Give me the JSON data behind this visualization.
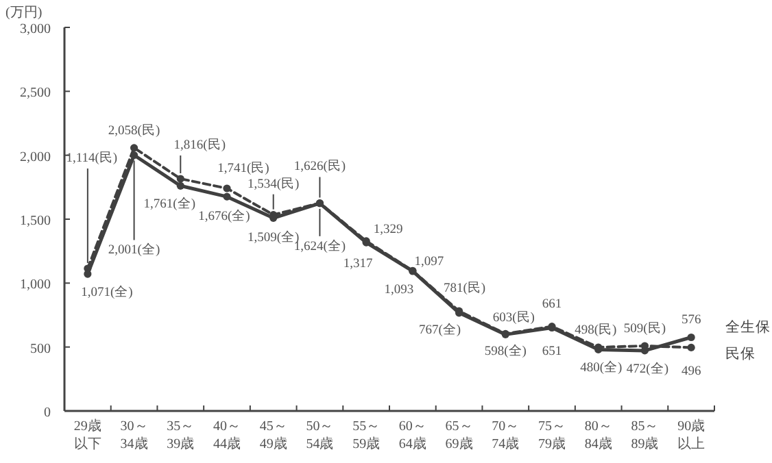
{
  "chart_data": {
    "type": "line",
    "ylabel": "(万円)",
    "categories": [
      "29歳以下",
      "30～34歳",
      "35～39歳",
      "40～44歳",
      "45～49歳",
      "50～54歳",
      "55～59歳",
      "60～64歳",
      "65～69歳",
      "70～74歳",
      "75～79歳",
      "80～84歳",
      "85～89歳",
      "90歳以上"
    ],
    "ylim": [
      0,
      3000
    ],
    "yticks": [
      0,
      500,
      {
        "value": 1000,
        "label": "1,000"
      },
      {
        "value": 1500,
        "label": "1,500"
      },
      {
        "value": 2000,
        "label": "2,000"
      },
      {
        "value": 2500,
        "label": "2,500"
      },
      {
        "value": 3000,
        "label": "3,000"
      }
    ],
    "grid": false,
    "marker": "circle",
    "series": [
      {
        "name": "全生保",
        "color": "#404040",
        "line_style": "solid",
        "values": [
          1071,
          2001,
          1761,
          1676,
          1509,
          1624,
          1317,
          1093,
          767,
          598,
          651,
          480,
          472,
          576
        ],
        "value_labels": [
          "1,071(全)",
          "2,001(全)",
          "1,761(全)",
          "1,676(全)",
          "1,509(全)",
          "1,624(全)",
          "1,317",
          "1,093",
          "767(全)",
          "598(全)",
          "651",
          "480(全)",
          "472(全)",
          "576"
        ]
      },
      {
        "name": "民保",
        "color": "#404040",
        "line_style": "dashed",
        "values": [
          1114,
          2058,
          1816,
          1741,
          1534,
          1626,
          1329,
          1097,
          781,
          603,
          661,
          498,
          509,
          496
        ],
        "value_labels": [
          "1,114(民)",
          "2,058(民)",
          "1,816(民)",
          "1,741(民)",
          "1,534(民)",
          "1,626(民)",
          "1,329",
          "1,097",
          "781(民)",
          "603(民)",
          "661",
          "498(民)",
          "509(民)",
          "496"
        ]
      }
    ]
  }
}
